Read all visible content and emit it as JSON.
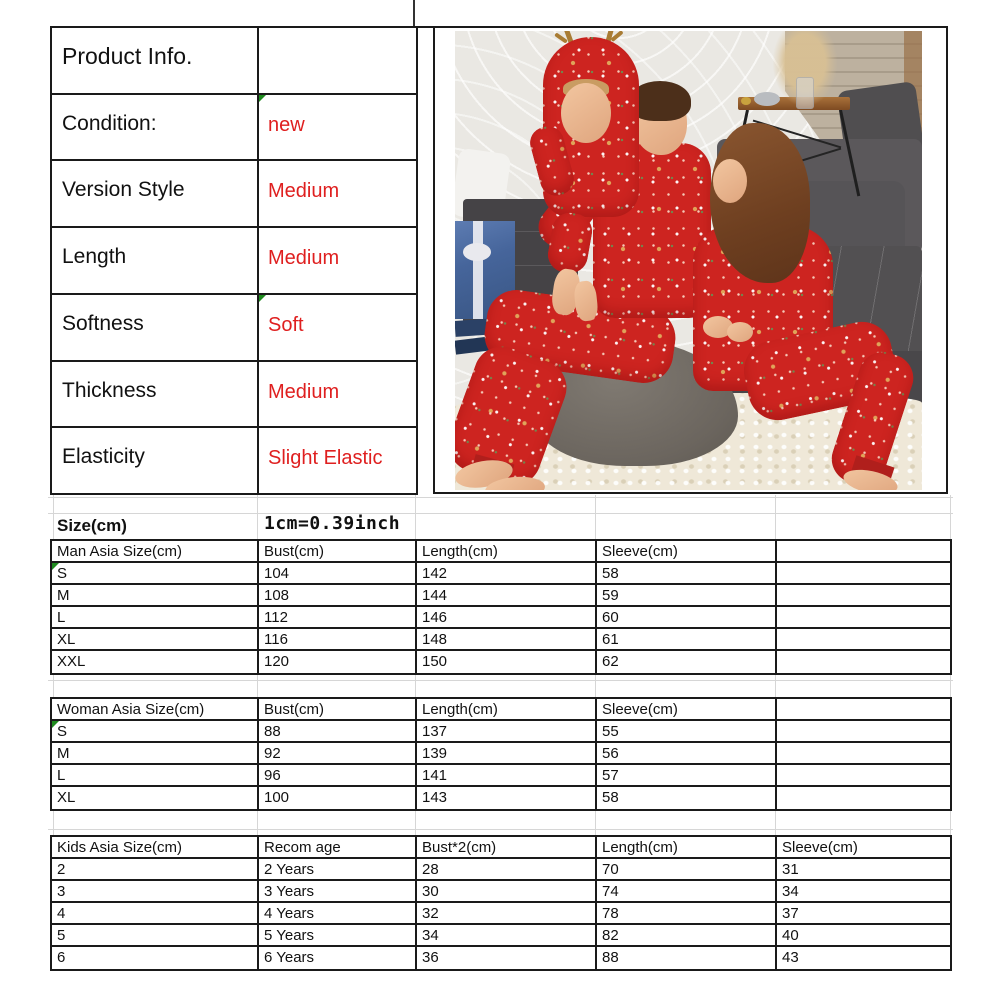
{
  "product_info": {
    "title": "Product Info.",
    "rows": [
      {
        "label": "Condition:",
        "value": "new",
        "marker": true
      },
      {
        "label": "Version Style",
        "value": "Medium",
        "marker": false
      },
      {
        "label": "Length",
        "value": "Medium",
        "marker": false
      },
      {
        "label": "Softness",
        "value": "Soft",
        "marker": true
      },
      {
        "label": "Thickness",
        "value": "Medium",
        "marker": false
      },
      {
        "label": "Elasticity",
        "value": "Slight Elastic",
        "marker": false
      }
    ]
  },
  "size_chart": {
    "title": "Size(cm)",
    "note": "1cm=0.39inch",
    "tables": [
      {
        "name": "man",
        "marker_first_row": true,
        "headers": [
          "Man Asia Size(cm)",
          "Bust(cm)",
          "Length(cm)",
          "Sleeve(cm)",
          ""
        ],
        "rows": [
          [
            "S",
            "104",
            "142",
            "58",
            ""
          ],
          [
            "M",
            "108",
            "144",
            "59",
            ""
          ],
          [
            "L",
            "112",
            "146",
            "60",
            ""
          ],
          [
            "XL",
            "116",
            "148",
            "61",
            ""
          ],
          [
            "XXL",
            "120",
            "150",
            "62",
            ""
          ]
        ]
      },
      {
        "name": "woman",
        "marker_first_row": true,
        "headers": [
          "Woman Asia Size(cm)",
          "Bust(cm)",
          "Length(cm)",
          "Sleeve(cm)",
          ""
        ],
        "rows": [
          [
            "S",
            "88",
            "137",
            "55",
            ""
          ],
          [
            "M",
            "92",
            "139",
            "56",
            ""
          ],
          [
            "L",
            "96",
            "141",
            "57",
            ""
          ],
          [
            "XL",
            "100",
            "143",
            "58",
            ""
          ]
        ]
      },
      {
        "name": "kids",
        "marker_first_row": false,
        "headers": [
          "Kids Asia Size(cm)",
          "Recom age",
          "Bust*2(cm)",
          "Length(cm)",
          "Sleeve(cm)"
        ],
        "rows": [
          [
            "2",
            "2 Years",
            "28",
            "70",
            "31"
          ],
          [
            "3",
            "3 Years",
            "30",
            "74",
            "34"
          ],
          [
            "4",
            "4 Years",
            "32",
            "78",
            "37"
          ],
          [
            "5",
            "5 Years",
            "34",
            "82",
            "40"
          ],
          [
            "6",
            "6 Years",
            "36",
            "88",
            "43"
          ]
        ]
      }
    ]
  },
  "colors": {
    "value_red": "#df1f1f",
    "table_border": "#1a1a1a",
    "grid_line": "#d6d6d6",
    "marker_green": "#1e8a1e",
    "pajama_red": "#cd2420",
    "sofa_gray": "#59575a",
    "rug_cream": "#efe8d8",
    "gift_blue": "#46659b",
    "wood_brown": "#8a4f26"
  }
}
